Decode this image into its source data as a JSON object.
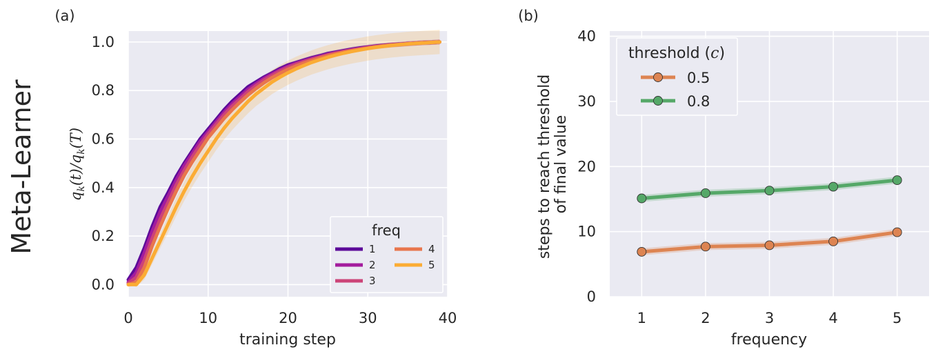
{
  "figure": {
    "row_label": "Meta-Learner"
  },
  "chart_data": [
    {
      "type": "line",
      "panel_label": "(a)",
      "title": "",
      "xlabel": "training step",
      "ylabel": "q_k(t)/q_k(T)",
      "ylabel_parts": {
        "q1": "q",
        "k1": "k",
        "t": "(t)/",
        "q2": "q",
        "k2": "k",
        "T": "(T)"
      },
      "xlim": [
        0,
        40
      ],
      "ylim": [
        -0.05,
        1.045
      ],
      "xticks": [
        0,
        10,
        20,
        30,
        40
      ],
      "xtick_labels": [
        "0",
        "10",
        "20",
        "30",
        "40"
      ],
      "yticks": [
        0.0,
        0.2,
        0.4,
        0.6,
        0.8,
        1.0
      ],
      "ytick_labels": [
        "0.0",
        "0.2",
        "0.4",
        "0.6",
        "0.8",
        "1.0"
      ],
      "grid": true,
      "legend": {
        "title": "freq",
        "placement": "lower-right",
        "columns": 2
      },
      "x": [
        0,
        1,
        2,
        3,
        4,
        5,
        6,
        7,
        8,
        9,
        10,
        11,
        12,
        13,
        14,
        15,
        16,
        17,
        18,
        19,
        20,
        21,
        22,
        23,
        24,
        25,
        26,
        27,
        28,
        29,
        30,
        31,
        32,
        33,
        34,
        35,
        36,
        37,
        38,
        39
      ],
      "series": [
        {
          "name": "1",
          "color": "#5c0a99",
          "values": [
            0.02,
            0.07,
            0.15,
            0.24,
            0.32,
            0.38,
            0.445,
            0.5,
            0.55,
            0.6,
            0.64,
            0.68,
            0.72,
            0.755,
            0.785,
            0.815,
            0.835,
            0.855,
            0.872,
            0.89,
            0.905,
            0.915,
            0.925,
            0.935,
            0.943,
            0.952,
            0.958,
            0.964,
            0.97,
            0.975,
            0.979,
            0.983,
            0.986,
            0.989,
            0.991,
            0.993,
            0.995,
            0.997,
            0.998,
            1.0
          ],
          "band": [
            0.01,
            0.01,
            0.01,
            0.01,
            0.01,
            0.01,
            0.01,
            0.01,
            0.01,
            0.01,
            0.01,
            0.01,
            0.01,
            0.01,
            0.01,
            0.01,
            0.01,
            0.01,
            0.01,
            0.01,
            0.01,
            0.01,
            0.01,
            0.01,
            0.01,
            0.01,
            0.01,
            0.01,
            0.01,
            0.01,
            0.01,
            0.01,
            0.01,
            0.01,
            0.01,
            0.01,
            0.01,
            0.01,
            0.01,
            0.01
          ]
        },
        {
          "name": "2",
          "color": "#a31c9d",
          "values": [
            0.01,
            0.05,
            0.13,
            0.22,
            0.3,
            0.365,
            0.43,
            0.49,
            0.54,
            0.59,
            0.63,
            0.67,
            0.71,
            0.745,
            0.775,
            0.805,
            0.828,
            0.85,
            0.868,
            0.885,
            0.9,
            0.912,
            0.922,
            0.932,
            0.94,
            0.949,
            0.956,
            0.962,
            0.968,
            0.973,
            0.978,
            0.982,
            0.985,
            0.988,
            0.99,
            0.993,
            0.995,
            0.997,
            0.998,
            1.0
          ],
          "band": [
            0.01,
            0.01,
            0.01,
            0.01,
            0.01,
            0.01,
            0.01,
            0.01,
            0.01,
            0.01,
            0.01,
            0.01,
            0.01,
            0.01,
            0.01,
            0.01,
            0.01,
            0.01,
            0.01,
            0.01,
            0.01,
            0.01,
            0.01,
            0.01,
            0.01,
            0.01,
            0.01,
            0.01,
            0.01,
            0.01,
            0.01,
            0.01,
            0.01,
            0.01,
            0.01,
            0.01,
            0.01,
            0.01,
            0.01,
            0.01
          ]
        },
        {
          "name": "3",
          "color": "#cc4478",
          "values": [
            0.005,
            0.03,
            0.1,
            0.19,
            0.27,
            0.34,
            0.41,
            0.47,
            0.525,
            0.575,
            0.62,
            0.66,
            0.7,
            0.735,
            0.765,
            0.795,
            0.82,
            0.843,
            0.862,
            0.88,
            0.895,
            0.908,
            0.919,
            0.929,
            0.938,
            0.947,
            0.954,
            0.961,
            0.967,
            0.972,
            0.977,
            0.981,
            0.985,
            0.988,
            0.99,
            0.993,
            0.995,
            0.997,
            0.998,
            1.0
          ],
          "band": [
            0.01,
            0.01,
            0.01,
            0.01,
            0.01,
            0.01,
            0.01,
            0.01,
            0.01,
            0.01,
            0.01,
            0.01,
            0.01,
            0.01,
            0.01,
            0.01,
            0.01,
            0.01,
            0.01,
            0.01,
            0.01,
            0.01,
            0.01,
            0.01,
            0.01,
            0.01,
            0.01,
            0.01,
            0.01,
            0.01,
            0.01,
            0.01,
            0.01,
            0.01,
            0.01,
            0.01,
            0.01,
            0.01,
            0.01,
            0.01
          ]
        },
        {
          "name": "4",
          "color": "#e8764d",
          "values": [
            0.0,
            0.01,
            0.07,
            0.16,
            0.24,
            0.315,
            0.385,
            0.45,
            0.505,
            0.555,
            0.605,
            0.645,
            0.685,
            0.72,
            0.752,
            0.782,
            0.808,
            0.832,
            0.853,
            0.871,
            0.887,
            0.901,
            0.913,
            0.924,
            0.934,
            0.943,
            0.951,
            0.958,
            0.964,
            0.97,
            0.975,
            0.98,
            0.984,
            0.987,
            0.99,
            0.992,
            0.995,
            0.997,
            0.998,
            1.0
          ],
          "band": [
            0.01,
            0.01,
            0.01,
            0.01,
            0.01,
            0.01,
            0.01,
            0.01,
            0.01,
            0.01,
            0.01,
            0.01,
            0.01,
            0.01,
            0.01,
            0.01,
            0.01,
            0.01,
            0.01,
            0.01,
            0.01,
            0.01,
            0.01,
            0.01,
            0.01,
            0.01,
            0.01,
            0.01,
            0.01,
            0.01,
            0.01,
            0.01,
            0.01,
            0.01,
            0.01,
            0.01,
            0.01,
            0.01,
            0.01,
            0.01
          ]
        },
        {
          "name": "5",
          "color": "#fbac34",
          "values": [
            0.0,
            0.0,
            0.04,
            0.11,
            0.18,
            0.25,
            0.32,
            0.385,
            0.445,
            0.5,
            0.55,
            0.6,
            0.645,
            0.685,
            0.72,
            0.755,
            0.785,
            0.81,
            0.835,
            0.855,
            0.873,
            0.889,
            0.903,
            0.916,
            0.927,
            0.937,
            0.946,
            0.954,
            0.961,
            0.967,
            0.973,
            0.978,
            0.982,
            0.986,
            0.989,
            0.992,
            0.994,
            0.996,
            0.998,
            1.0
          ],
          "band": [
            0.0,
            0.01,
            0.02,
            0.025,
            0.03,
            0.035,
            0.038,
            0.04,
            0.042,
            0.044,
            0.045,
            0.046,
            0.047,
            0.048,
            0.048,
            0.049,
            0.049,
            0.05,
            0.05,
            0.05,
            0.05,
            0.05,
            0.05,
            0.05,
            0.05,
            0.05,
            0.05,
            0.05,
            0.05,
            0.05,
            0.05,
            0.05,
            0.05,
            0.05,
            0.05,
            0.05,
            0.05,
            0.05,
            0.05,
            0.05
          ]
        }
      ]
    },
    {
      "type": "line",
      "panel_label": "(b)",
      "title": "",
      "xlabel": "frequency",
      "ylabel": [
        "steps to reach threshold",
        "of final value"
      ],
      "xlim": [
        0.5,
        5.5
      ],
      "ylim": [
        0,
        40.8
      ],
      "xticks": [
        1,
        2,
        3,
        4,
        5
      ],
      "xtick_labels": [
        "1",
        "2",
        "3",
        "4",
        "5"
      ],
      "yticks": [
        0,
        10,
        20,
        30,
        40
      ],
      "ytick_labels": [
        "0",
        "10",
        "20",
        "30",
        "40"
      ],
      "grid": true,
      "legend": {
        "title": "threshold (",
        "title_var": "c",
        "title_close": ")",
        "placement": "top-left"
      },
      "x": [
        1,
        2,
        3,
        4,
        5
      ],
      "series": [
        {
          "name": "0.5",
          "color": "#dd8452",
          "values": [
            6.9,
            7.7,
            7.9,
            8.5,
            9.9
          ]
        },
        {
          "name": "0.8",
          "color": "#55a868",
          "values": [
            15.1,
            15.9,
            16.3,
            16.9,
            17.9
          ]
        }
      ]
    }
  ]
}
